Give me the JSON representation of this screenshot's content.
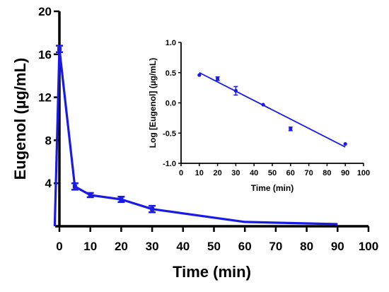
{
  "colors": {
    "series": "#1a1ae6",
    "axis": "#000000"
  },
  "chart_data": [
    {
      "type": "line",
      "title": "",
      "xlabel": "Time (min)",
      "ylabel": "Eugenol (µg/mL)",
      "xlim": [
        0,
        100
      ],
      "ylim": [
        0,
        20
      ],
      "x_ticks": [
        0,
        10,
        20,
        30,
        40,
        50,
        60,
        70,
        80,
        90,
        100
      ],
      "y_ticks": [
        4,
        8,
        12,
        16,
        20
      ],
      "grid": false,
      "legend": "none",
      "series": [
        {
          "x": [
            -1.5,
            0,
            5,
            10,
            20,
            30,
            60,
            90
          ],
          "y": [
            0,
            16.5,
            3.7,
            2.9,
            2.5,
            1.6,
            0.4,
            0.2
          ],
          "err": [
            0,
            0.3,
            0.3,
            0.2,
            0.25,
            0.3,
            0,
            0
          ],
          "marker": [
            false,
            true,
            true,
            true,
            true,
            true,
            false,
            false
          ]
        }
      ]
    },
    {
      "type": "scatter",
      "title": "",
      "xlabel": "Time (min)",
      "ylabel": "Log [Eugenol] (µg/mL)",
      "xlim": [
        0,
        100
      ],
      "ylim": [
        -1.0,
        1.0
      ],
      "x_ticks": [
        0,
        10,
        20,
        30,
        40,
        50,
        60,
        70,
        80,
        90,
        100
      ],
      "y_ticks": [
        "-1.0",
        "-0.5",
        "0.0",
        "0.5",
        "1.0"
      ],
      "grid": false,
      "legend": "none",
      "series": [
        {
          "x": [
            10,
            20,
            30,
            45,
            60,
            90
          ],
          "y": [
            0.46,
            0.4,
            0.2,
            -0.03,
            -0.43,
            -0.68
          ],
          "err": [
            0,
            0.03,
            0.07,
            0,
            0.03,
            0
          ]
        }
      ],
      "fit_line": {
        "x": [
          10,
          90
        ],
        "y": [
          0.5,
          -0.73
        ]
      }
    }
  ]
}
